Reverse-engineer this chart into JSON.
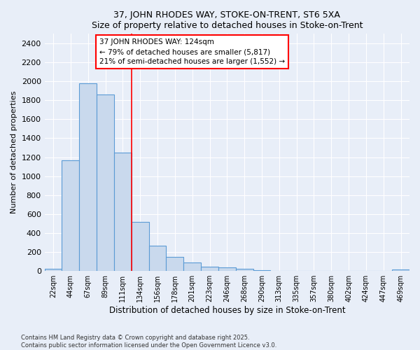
{
  "title1": "37, JOHN RHODES WAY, STOKE-ON-TRENT, ST6 5XA",
  "title2": "Size of property relative to detached houses in Stoke-on-Trent",
  "xlabel": "Distribution of detached houses by size in Stoke-on-Trent",
  "ylabel": "Number of detached properties",
  "bin_labels": [
    "22sqm",
    "44sqm",
    "67sqm",
    "89sqm",
    "111sqm",
    "134sqm",
    "156sqm",
    "178sqm",
    "201sqm",
    "223sqm",
    "246sqm",
    "268sqm",
    "290sqm",
    "313sqm",
    "335sqm",
    "357sqm",
    "380sqm",
    "402sqm",
    "424sqm",
    "447sqm",
    "469sqm"
  ],
  "bar_values": [
    25,
    1170,
    1980,
    1860,
    1245,
    520,
    270,
    150,
    90,
    45,
    40,
    20,
    10,
    5,
    3,
    2,
    1,
    1,
    1,
    1,
    15
  ],
  "bar_color": "#c9d9ed",
  "bar_edge_color": "#5b9bd5",
  "vline_color": "red",
  "vline_pos": 4.5,
  "annotation_title": "37 JOHN RHODES WAY: 124sqm",
  "annotation_line1": "← 79% of detached houses are smaller (5,817)",
  "annotation_line2": "21% of semi-detached houses are larger (1,552) →",
  "ylim": [
    0,
    2500
  ],
  "yticks": [
    0,
    200,
    400,
    600,
    800,
    1000,
    1200,
    1400,
    1600,
    1800,
    2000,
    2200,
    2400
  ],
  "footer1": "Contains HM Land Registry data © Crown copyright and database right 2025.",
  "footer2": "Contains public sector information licensed under the Open Government Licence v3.0.",
  "bg_color": "#e8eef8",
  "plot_bg_color": "#e8eef8"
}
